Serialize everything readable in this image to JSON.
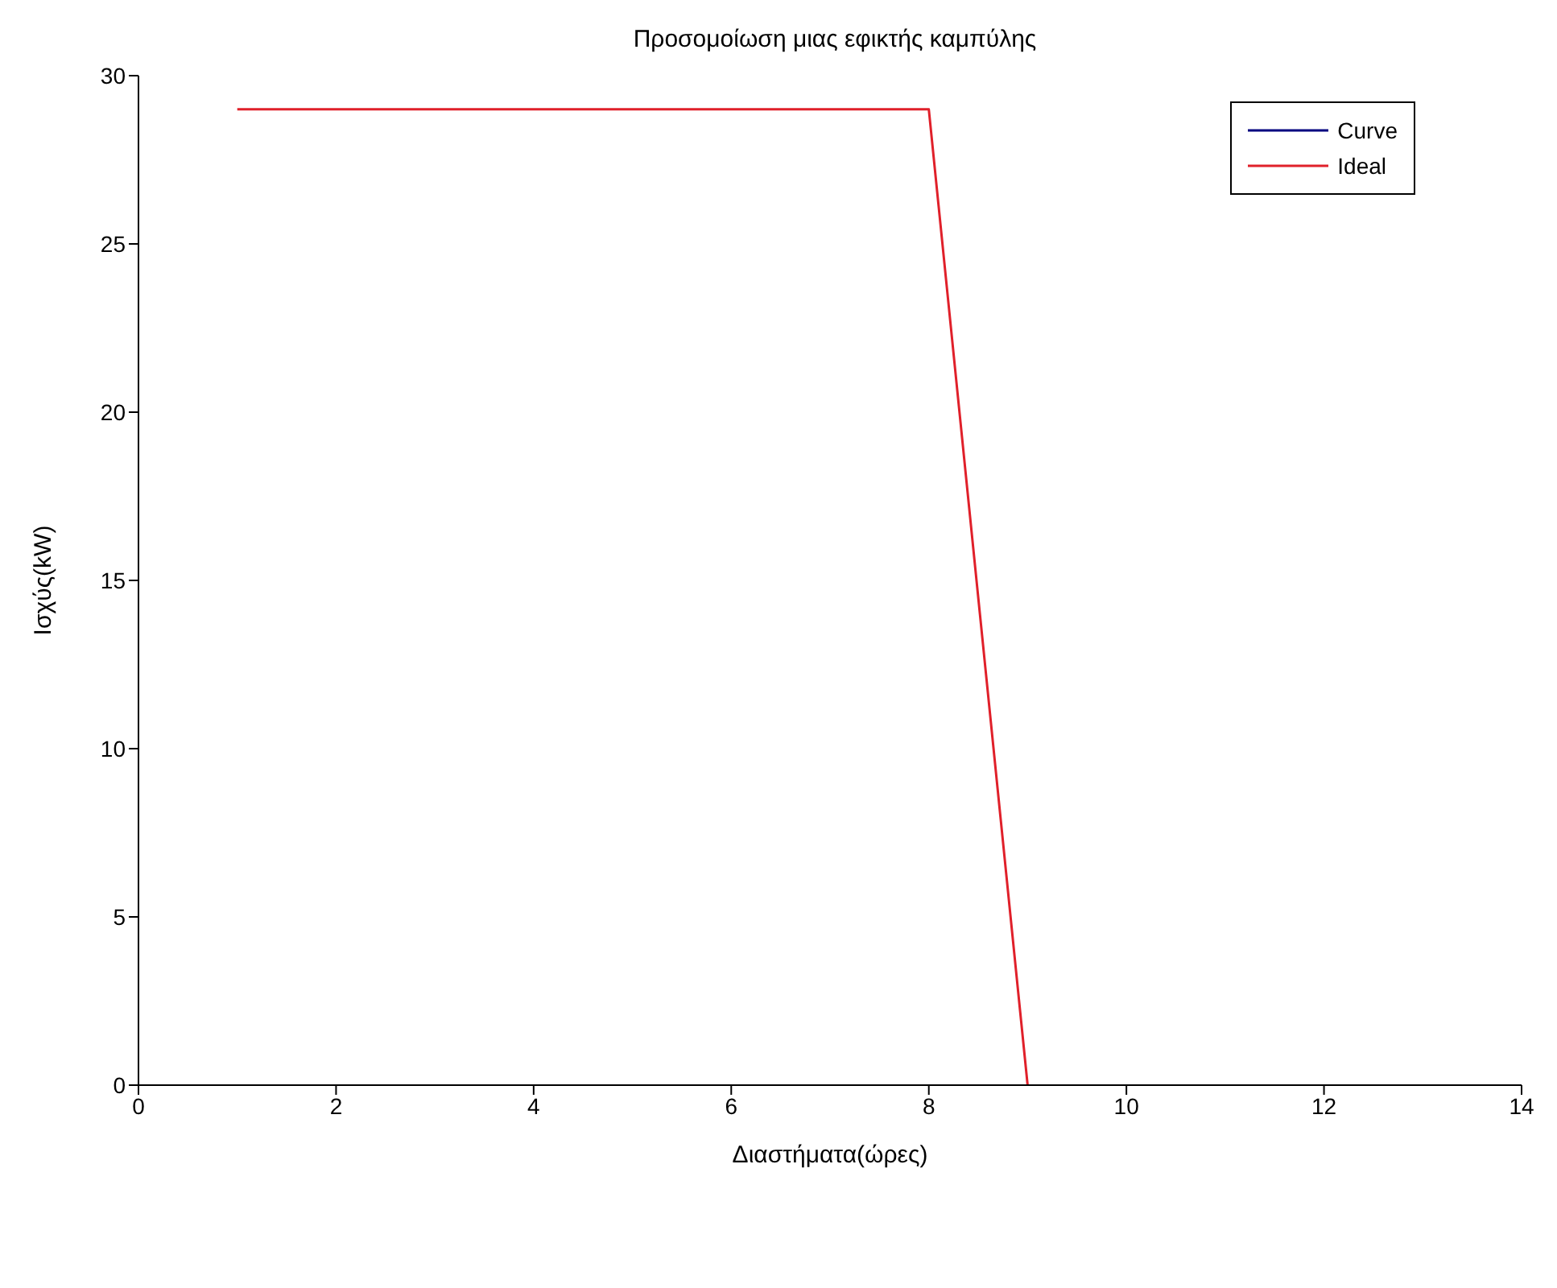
{
  "chart_data": {
    "type": "line",
    "title": "Προσομοίωση μιας εφικτής καμπύλης",
    "xlabel": "Διαστήματα(ώρες)",
    "ylabel": "Ισχύς(kW)",
    "x": [
      1,
      2,
      3,
      4,
      5,
      6,
      7,
      8,
      9
    ],
    "series": [
      {
        "name": "Curve",
        "color": "#00007f",
        "values": [
          null,
          null,
          null,
          null,
          null,
          null,
          null,
          null,
          null
        ]
      },
      {
        "name": "Ideal",
        "color": "#e0202a",
        "values": [
          29,
          29,
          29,
          29,
          29,
          29,
          29,
          29,
          0
        ]
      }
    ],
    "xlim": [
      0,
      14
    ],
    "xticks": [
      0,
      2,
      4,
      6,
      8,
      10,
      12,
      14
    ],
    "ylim": [
      0,
      30
    ],
    "yticks": [
      0,
      5,
      10,
      15,
      20,
      25,
      30
    ],
    "grid": false,
    "legend": "top right",
    "marker": "none",
    "line_style": "solid"
  }
}
